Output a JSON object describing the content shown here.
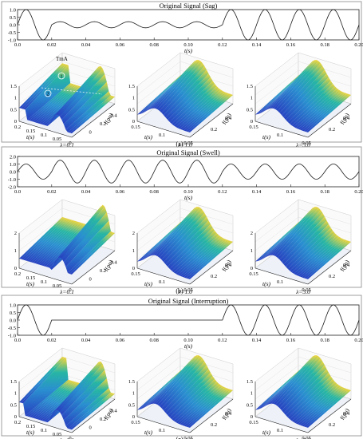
{
  "panels": [
    {
      "title": "Original Signal (Sag)",
      "xlabel": "t(s)",
      "caption": "(a)"
    },
    {
      "title": "Original Signal (Swell)",
      "xlabel": "t(s)",
      "caption": "(b)"
    },
    {
      "title": "Original Signal (Interruption)",
      "xlabel": "t(s)",
      "caption": "(c)"
    }
  ],
  "lambdas": [
    "λ=0.1",
    "λ=1.0",
    "λ=3.0"
  ],
  "axis_t_label": "t(s)",
  "axis_f_label": "f(pu)",
  "annotations": {
    "tmax": "TmA",
    "mark1": "1",
    "mark2": "2"
  },
  "colors": {
    "low": "#2b3fc8",
    "mid": "#29b3a8",
    "high": "#f3d335",
    "line": "#1a1a1a",
    "frame": "#222222"
  },
  "chart_data": [
    {
      "type": "line",
      "title": "Original Signal (Sag)",
      "xlabel": "t(s)",
      "ylabel": "",
      "xlim": [
        0,
        0.2
      ],
      "ylim": [
        -1.0,
        1.0
      ],
      "x_ticks": [
        "0.0",
        "0.02",
        "0.04",
        "0.06",
        "0.08",
        "0.10",
        "0.12",
        "0.14",
        "0.16",
        "0.18",
        "0.20"
      ],
      "y_ticks": [
        "1.0",
        "0.5",
        "0.0",
        "-0.5",
        "-1.0"
      ],
      "frequency_hz": 50,
      "disturbance_start": 0.02,
      "disturbance_end": 0.12,
      "disturbance_amplitude": 0.2,
      "normal_amplitude": 1.0
    },
    {
      "type": "line",
      "title": "Original Signal (Swell)",
      "xlabel": "t(s)",
      "ylabel": "",
      "xlim": [
        0,
        0.2
      ],
      "ylim": [
        -2.0,
        2.0
      ],
      "x_ticks": [
        "0.0",
        "0.02",
        "0.04",
        "0.06",
        "0.08",
        "0.10",
        "0.12",
        "0.14",
        "0.16",
        "0.18",
        "0.20"
      ],
      "y_ticks": [
        "2.0",
        "1.0",
        "0.0",
        "-1.0",
        "-2.0"
      ],
      "frequency_hz": 50,
      "disturbance_start": 0.02,
      "disturbance_end": 0.12,
      "disturbance_amplitude": 1.5,
      "normal_amplitude": 1.0
    },
    {
      "type": "line",
      "title": "Original Signal (Interruption)",
      "xlabel": "t(s)",
      "ylabel": "",
      "xlim": [
        0,
        0.2
      ],
      "ylim": [
        -1.0,
        1.0
      ],
      "x_ticks": [
        "0.0",
        "0.02",
        "0.04",
        "0.06",
        "0.08",
        "0.10",
        "0.12",
        "0.14",
        "0.16",
        "0.18",
        "0.20"
      ],
      "y_ticks": [
        "1.0",
        "0.5",
        "0.0",
        "-0.5",
        "-1.0"
      ],
      "frequency_hz": 50,
      "disturbance_start": 0.02,
      "disturbance_end": 0.12,
      "disturbance_amplitude": 0.0,
      "normal_amplitude": 1.0
    }
  ],
  "surface_axes": {
    "z_ticks_a": [
      "1.5",
      "1",
      "0.5",
      "0"
    ],
    "z_ticks_b": [
      "2",
      "1",
      "0"
    ],
    "z_ticks_c": [
      "1.5",
      "1",
      "0.5",
      "0"
    ],
    "t_ticks": [
      "0.2",
      "0.15",
      "0.1",
      "0.05",
      "0"
    ],
    "t_ticks_small": [
      "0.15",
      "0.1",
      "0.05"
    ],
    "f_ticks": [
      "0",
      "0.2",
      "0.4"
    ],
    "f_ticks_right": [
      "0.2",
      "0.4"
    ]
  }
}
